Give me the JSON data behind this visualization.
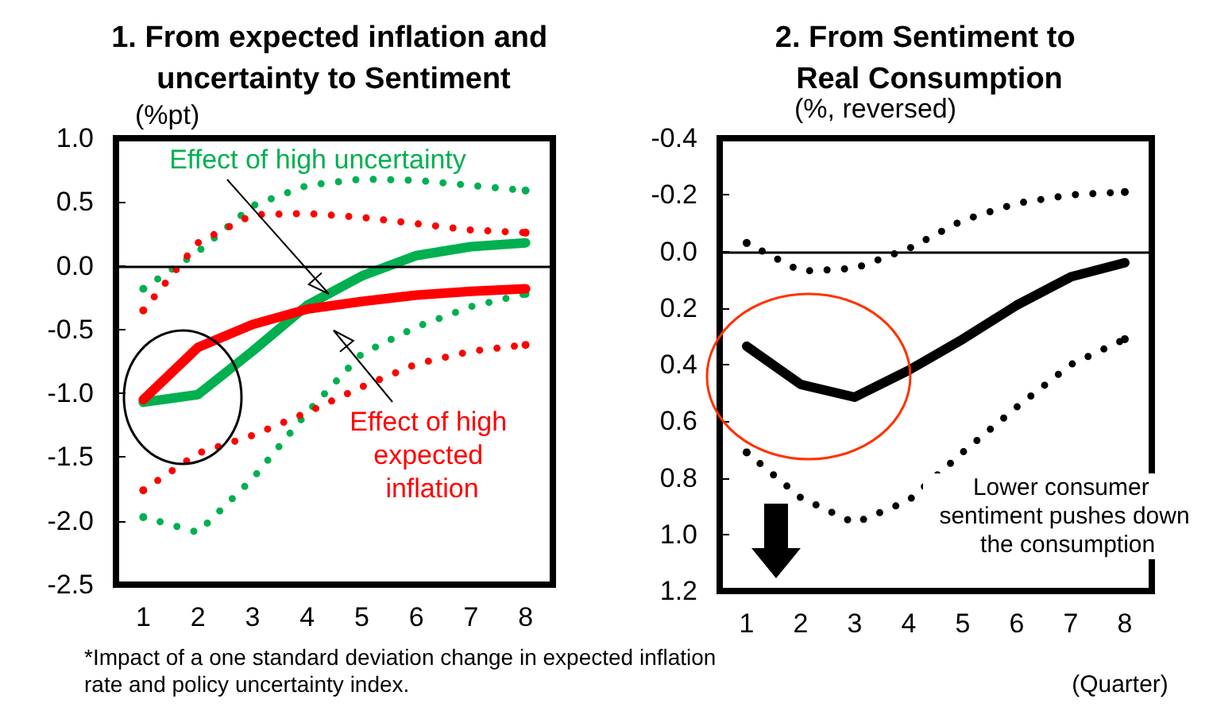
{
  "chart_data": [
    {
      "type": "line",
      "title": "1. From expected inflation and uncertainty to Sentiment",
      "ylabel": "(%pt)",
      "categories": [
        "1",
        "2",
        "3",
        "4",
        "5",
        "6",
        "7",
        "8"
      ],
      "marker": "none",
      "series": [
        {
          "name": "Effect of high uncertainty",
          "color": "#00b050",
          "line_style": "solid",
          "values": [
            -1.07,
            -1.01,
            -0.67,
            -0.31,
            -0.08,
            0.08,
            0.15,
            0.18
          ]
        },
        {
          "color": "#00b050",
          "line_style": "dotted",
          "values": [
            -0.18,
            0.11,
            0.47,
            0.63,
            0.68,
            0.67,
            0.63,
            0.59
          ]
        },
        {
          "color": "#00b050",
          "line_style": "dotted",
          "values": [
            -1.97,
            -2.09,
            -1.67,
            -1.15,
            -0.69,
            -0.48,
            -0.32,
            -0.22
          ]
        },
        {
          "name": "Effect of high expected inflation",
          "color": "#ff0000",
          "line_style": "solid",
          "values": [
            -1.05,
            -0.64,
            -0.46,
            -0.34,
            -0.28,
            -0.23,
            -0.2,
            -0.18
          ]
        },
        {
          "color": "#ff0000",
          "line_style": "dotted",
          "values": [
            -0.35,
            0.18,
            0.4,
            0.41,
            0.38,
            0.33,
            0.28,
            0.26
          ]
        },
        {
          "color": "#ff0000",
          "line_style": "dotted",
          "values": [
            -1.76,
            -1.47,
            -1.33,
            -1.15,
            -0.95,
            -0.77,
            -0.67,
            -0.62
          ]
        }
      ],
      "ylim": [
        -2.5,
        1.0
      ],
      "yticks": [
        {
          "value": -2.5,
          "label": "-2.5"
        },
        {
          "value": -2.0,
          "label": "-2.0"
        },
        {
          "value": -1.5,
          "label": "-1.5"
        },
        {
          "value": -1.0,
          "label": "-1.0"
        },
        {
          "value": -0.5,
          "label": "-0.5"
        },
        {
          "value": 0,
          "label": "0.0"
        },
        {
          "value": 0.5,
          "label": "0.5"
        },
        {
          "value": 1.0,
          "label": "1.0"
        }
      ],
      "ref_lines": [
        {
          "axis": "y",
          "value": 0,
          "color": "#000000"
        }
      ],
      "annotations": [
        "*Impact of a one standard deviation change in expected inflation rate and policy uncertainty index."
      ]
    },
    {
      "type": "line",
      "title": "2. From Sentiment to Real Consumption",
      "ylabel": "(%, reversed)",
      "categories": [
        "1",
        "2",
        "3",
        "4",
        "5",
        "6",
        "7",
        "8"
      ],
      "marker": "none",
      "series": [
        {
          "color": "#000000",
          "line_style": "solid",
          "values": [
            0.335,
            0.47,
            0.515,
            0.42,
            0.31,
            0.19,
            0.09,
            0.04
          ]
        },
        {
          "color": "#000000",
          "line_style": "dotted",
          "values": [
            -0.03,
            0.07,
            0.06,
            -0.01,
            -0.11,
            -0.17,
            -0.2,
            -0.21
          ]
        },
        {
          "color": "#000000",
          "line_style": "dotted",
          "values": [
            0.71,
            0.87,
            0.96,
            0.88,
            0.71,
            0.55,
            0.4,
            0.31
          ]
        }
      ],
      "ylim": [
        1.2,
        -0.4
      ],
      "yticks": [
        {
          "value": -0.4,
          "label": "-0.4"
        },
        {
          "value": -0.2,
          "label": "-0.2"
        },
        {
          "value": 0,
          "label": "0.0"
        },
        {
          "value": 0.2,
          "label": "0.2"
        },
        {
          "value": 0.4,
          "label": "0.4"
        },
        {
          "value": 0.6,
          "label": "0.6"
        },
        {
          "value": 0.8,
          "label": "0.8"
        },
        {
          "value": 1.0,
          "label": "1.0"
        },
        {
          "value": 1.2,
          "label": "1.2"
        }
      ],
      "ref_lines": [
        {
          "axis": "y",
          "value": 0,
          "color": "#000000"
        }
      ],
      "annotations": [
        "Lower consumer sentiment pushes down the consumption",
        "(Quarter)"
      ]
    }
  ]
}
